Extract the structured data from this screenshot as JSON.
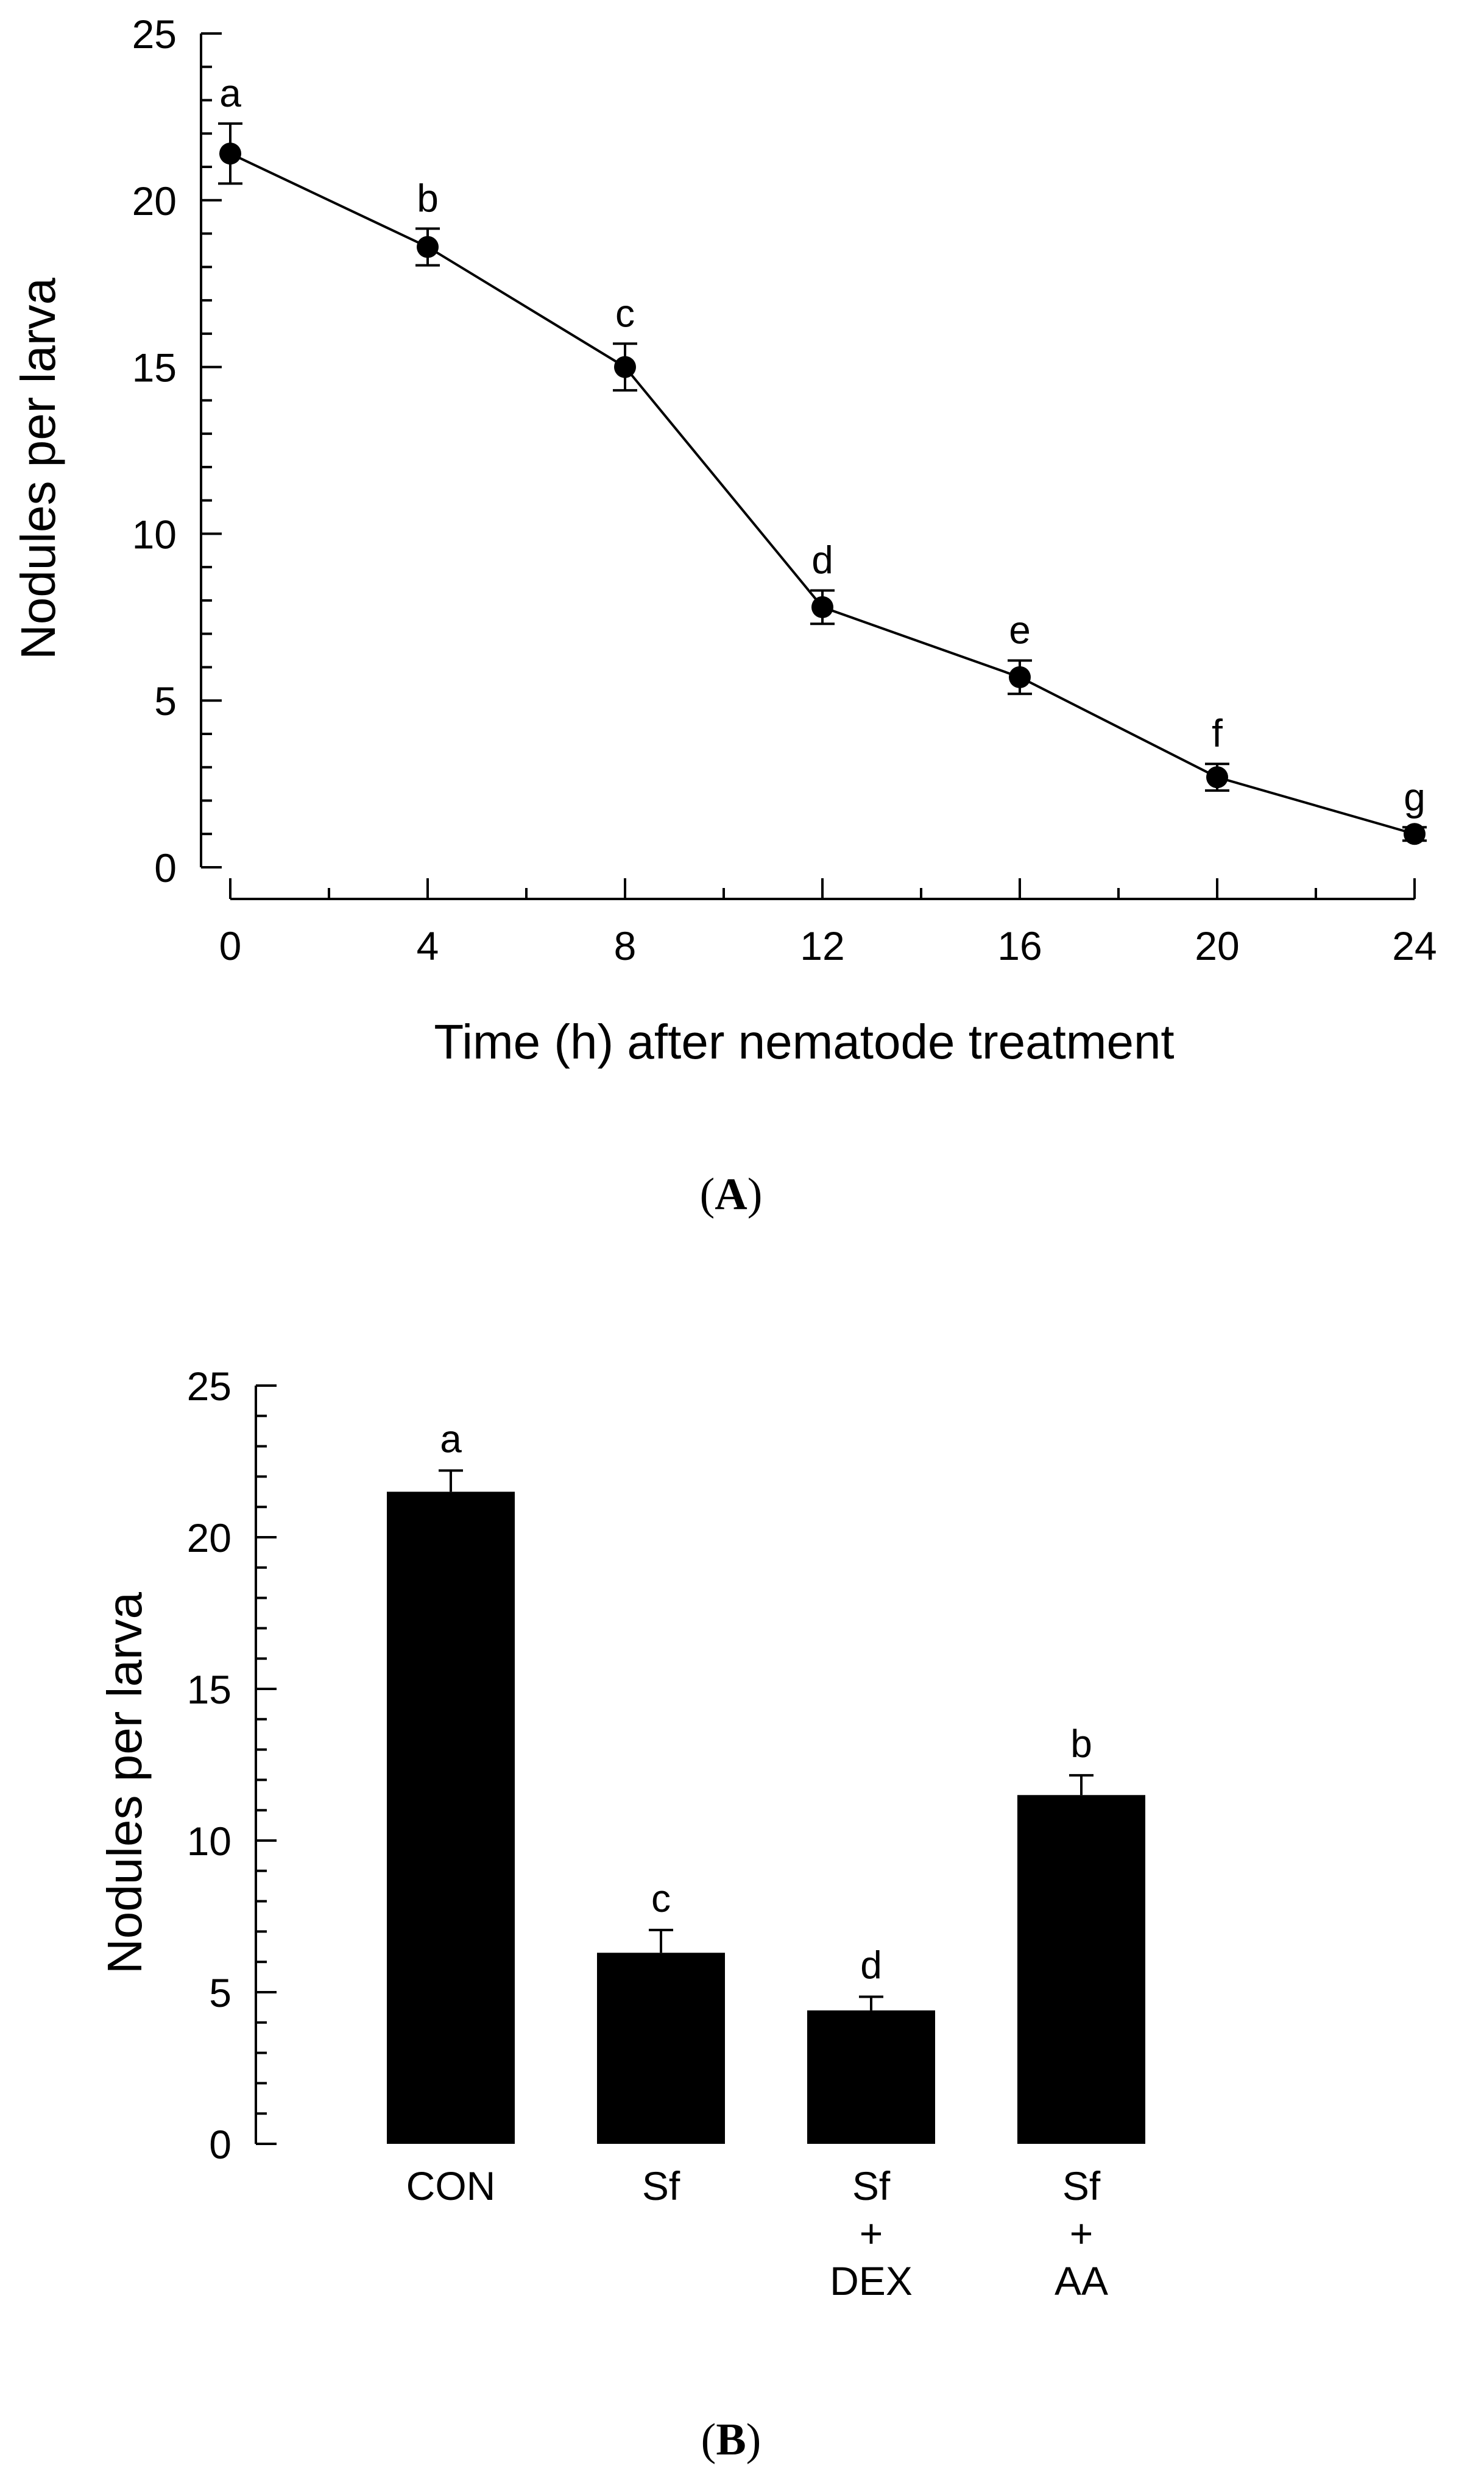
{
  "chart_data": [
    {
      "type": "line",
      "panel_label": "A",
      "xlabel": "Time (h) after nematode treatment",
      "ylabel": "Nodules per larva",
      "xlim": [
        0,
        24
      ],
      "ylim": [
        0,
        25
      ],
      "xticks": [
        "0",
        "4",
        "8",
        "12",
        "16",
        "20",
        "24"
      ],
      "yticks": [
        "0",
        "5",
        "10",
        "15",
        "20",
        "25"
      ],
      "x": [
        0,
        4,
        8,
        12,
        16,
        20,
        24
      ],
      "series": [
        {
          "values": [
            21.4,
            18.6,
            15.0,
            7.8,
            5.7,
            2.7,
            1.0
          ],
          "errors": [
            0.9,
            0.55,
            0.7,
            0.5,
            0.5,
            0.4,
            0.2
          ],
          "letters": [
            "a",
            "b",
            "c",
            "d",
            "e",
            "f",
            "g"
          ]
        }
      ],
      "grid": false,
      "color": "#000000"
    },
    {
      "type": "bar",
      "panel_label": "B",
      "xlabel": "",
      "ylabel": "Nodules per larva",
      "ylim": [
        0,
        25
      ],
      "yticks": [
        "0",
        "5",
        "10",
        "15",
        "20",
        "25"
      ],
      "categories": [
        "CON",
        "Sf\n+\n",
        "Sf\n+\nDEX",
        "Sf\n+\nAA"
      ],
      "category_lines": [
        [
          "CON"
        ],
        [
          "Sf"
        ],
        [
          "Sf",
          "+",
          "DEX"
        ],
        [
          "Sf",
          "+",
          "AA"
        ]
      ],
      "values": [
        21.5,
        6.3,
        4.4,
        11.5
      ],
      "errors": [
        0.7,
        0.75,
        0.45,
        0.65
      ],
      "letters": [
        "a",
        "c",
        "d",
        "b"
      ],
      "grid": false,
      "color": "#000000"
    }
  ]
}
